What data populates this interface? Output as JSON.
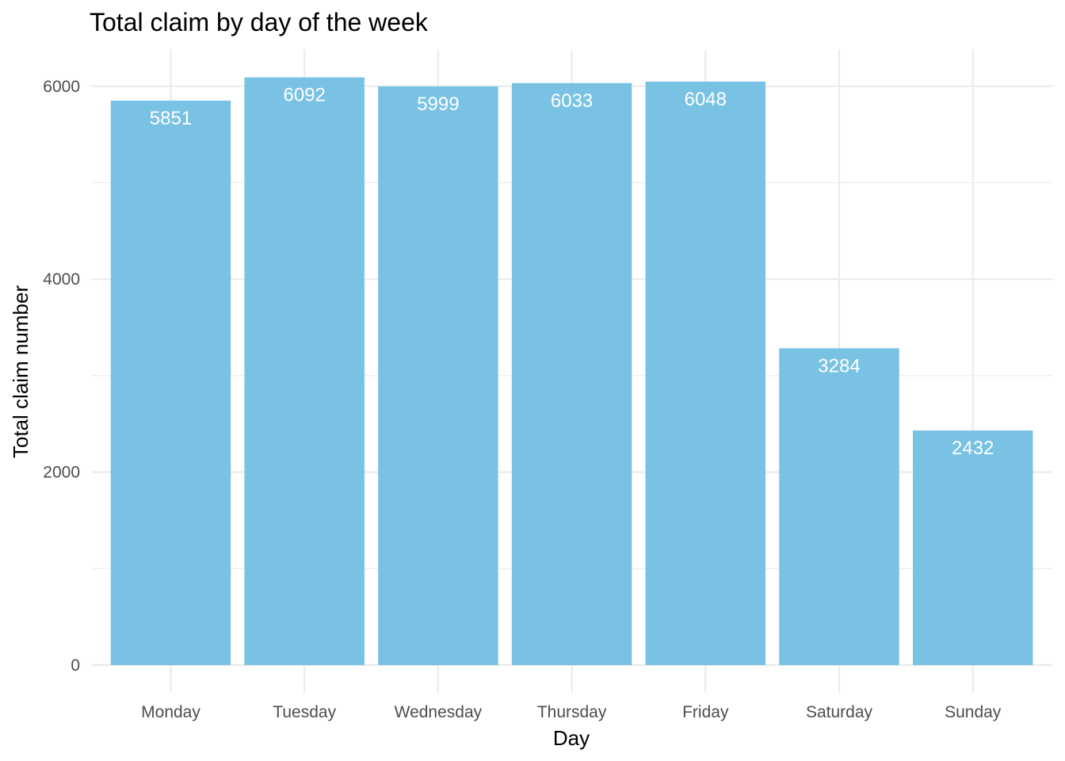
{
  "chart_data": {
    "type": "bar",
    "title": "Total claim by day of the week",
    "xlabel": "Day",
    "ylabel": "Total claim number",
    "categories": [
      "Monday",
      "Tuesday",
      "Wednesday",
      "Thursday",
      "Friday",
      "Saturday",
      "Sunday"
    ],
    "values": [
      5851,
      6092,
      5999,
      6033,
      6048,
      3284,
      2432
    ],
    "data_labels": [
      "5851",
      "6092",
      "5999",
      "6033",
      "6048",
      "3284",
      "2432"
    ],
    "ylim": [
      0,
      6400
    ],
    "y_ticks": [
      0,
      2000,
      4000,
      6000
    ],
    "y_tick_labels": [
      "0",
      "2000",
      "4000",
      "6000"
    ],
    "y_minor_ticks": [
      1000,
      3000,
      5000
    ],
    "grid": true,
    "legend": "none",
    "bar_color": "#7AC2E4",
    "label_color": "#FFFFFF"
  }
}
